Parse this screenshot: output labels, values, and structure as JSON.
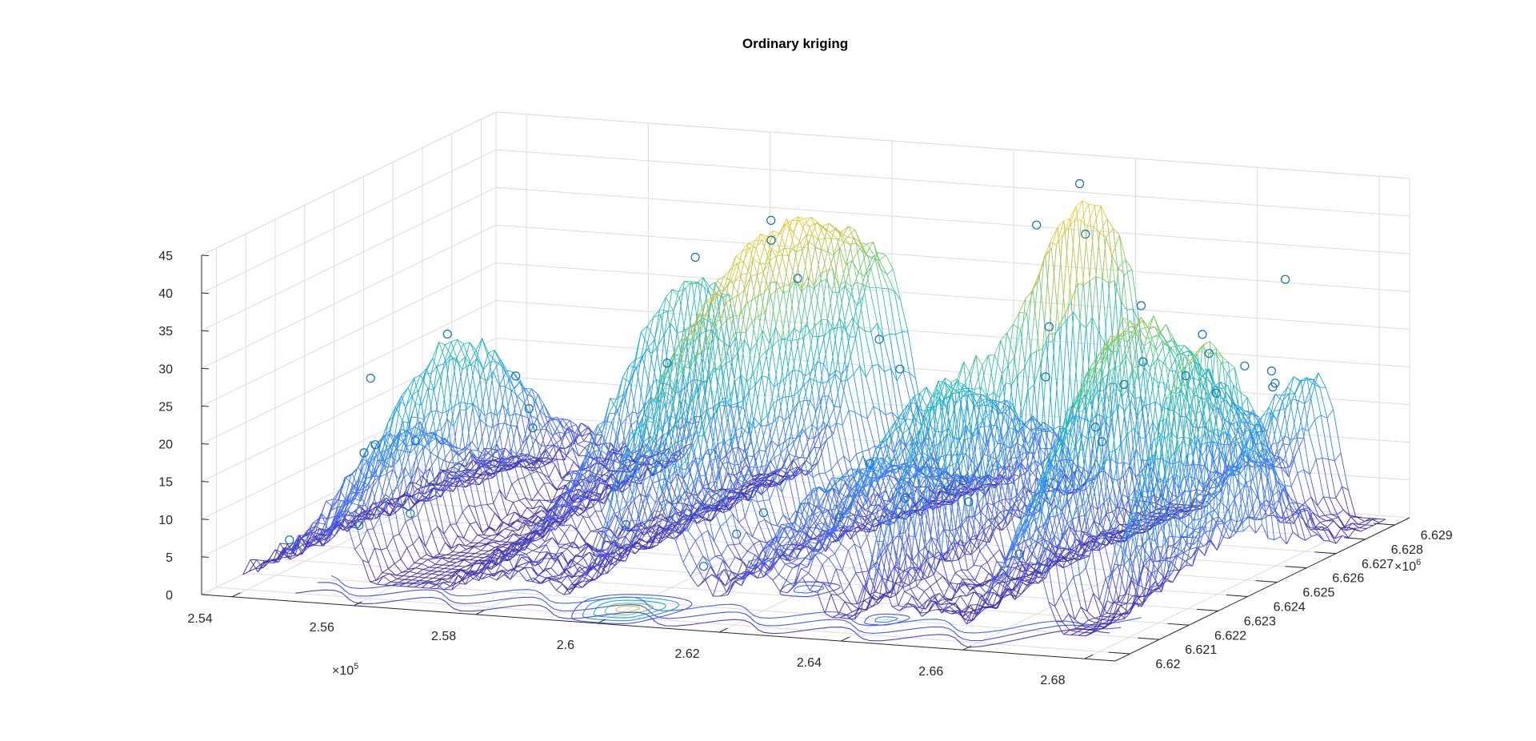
{
  "chart_data": {
    "type": "surface",
    "title": "Ordinary kriging",
    "x_axis": {
      "ticks": [
        "2.54",
        "2.56",
        "2.58",
        "2.6",
        "2.62",
        "2.64",
        "2.66",
        "2.68"
      ],
      "tick_values": [
        2.54,
        2.56,
        2.58,
        2.6,
        2.62,
        2.64,
        2.66,
        2.68
      ],
      "exponent_base": "×10",
      "exponent": "5",
      "range": [
        2.535,
        2.685
      ]
    },
    "y_axis": {
      "ticks": [
        "6.62",
        "6.621",
        "6.622",
        "6.623",
        "6.624",
        "6.625",
        "6.626",
        "6.627",
        "6.628",
        "6.629"
      ],
      "tick_values": [
        6.62,
        6.621,
        6.622,
        6.623,
        6.624,
        6.625,
        6.626,
        6.627,
        6.628,
        6.629
      ],
      "exponent_base": "×10",
      "exponent": "6",
      "range": [
        6.6195,
        6.6295
      ]
    },
    "z_axis": {
      "ticks": [
        "0",
        "5",
        "10",
        "15",
        "20",
        "25",
        "30",
        "35",
        "40",
        "45"
      ],
      "tick_values": [
        0,
        5,
        10,
        15,
        20,
        25,
        30,
        35,
        40,
        45
      ],
      "range": [
        0,
        45
      ]
    },
    "grid": true,
    "colormap": [
      "#3e26a8",
      "#4760f6",
      "#2e8ff6",
      "#12b2cf",
      "#4bc98f",
      "#b7c44a",
      "#f5d03a"
    ],
    "surface_peaks": [
      {
        "x": 2.6,
        "y": 6.6255,
        "z": 40,
        "spread": 0.0075
      },
      {
        "x": 2.6405,
        "y": 6.6275,
        "z": 43,
        "spread": 0.0035
      },
      {
        "x": 2.6795,
        "y": 6.6235,
        "z": 34,
        "spread": 0.003
      },
      {
        "x": 2.5515,
        "y": 6.6245,
        "z": 24,
        "spread": 0.004
      },
      {
        "x": 2.574,
        "y": 6.628,
        "z": 28,
        "spread": 0.004
      },
      {
        "x": 2.6275,
        "y": 6.6252,
        "z": 21,
        "spread": 0.0045
      },
      {
        "x": 2.639,
        "y": 6.623,
        "z": 24,
        "spread": 0.0025
      },
      {
        "x": 2.6605,
        "y": 6.625,
        "z": 28,
        "spread": 0.005
      },
      {
        "x": 2.665,
        "y": 6.6235,
        "z": 22,
        "spread": 0.004
      },
      {
        "x": 2.545,
        "y": 6.624,
        "z": 12,
        "spread": 0.003
      },
      {
        "x": 2.62,
        "y": 6.624,
        "z": 12,
        "spread": 0.004
      },
      {
        "x": 2.672,
        "y": 6.6285,
        "z": 18,
        "spread": 0.004
      }
    ],
    "observations": [
      [
        2.6405,
        6.6275,
        45.5
      ],
      [
        2.64,
        6.6278,
        38.2
      ],
      [
        2.599,
        6.6256,
        41.8
      ],
      [
        2.6,
        6.6254,
        39.6
      ],
      [
        2.6795,
        6.6236,
        35.2
      ],
      [
        2.631,
        6.628,
        38.5
      ],
      [
        2.5512,
        6.6245,
        26.0
      ],
      [
        2.541,
        6.624,
        20.5
      ],
      [
        2.574,
        6.6282,
        30.5
      ],
      [
        2.586,
        6.6292,
        26.5
      ],
      [
        2.653,
        6.627,
        31.0
      ],
      [
        2.667,
        6.629,
        31.5
      ],
      [
        2.662,
        6.6252,
        27.5
      ],
      [
        2.625,
        6.6246,
        25.5
      ],
      [
        2.67,
        6.625,
        26.5
      ],
      [
        2.669,
        6.626,
        27.5
      ],
      [
        2.675,
        6.625,
        24.5
      ],
      [
        2.558,
        6.622,
        17.0
      ],
      [
        2.552,
        6.6215,
        16.0
      ],
      [
        2.549,
        6.6225,
        15.0
      ],
      [
        2.56,
        6.625,
        20.0
      ],
      [
        2.567,
        6.624,
        18.0
      ],
      [
        2.571,
        6.6233,
        17.0
      ],
      [
        2.58,
        6.626,
        21.0
      ],
      [
        2.61,
        6.627,
        24.0
      ],
      [
        2.635,
        6.6276,
        26.0
      ],
      [
        2.647,
        6.625,
        25.0
      ],
      [
        2.656,
        6.6258,
        23.0
      ],
      [
        2.66,
        6.624,
        21.0
      ],
      [
        2.663,
        6.6236,
        20.0
      ],
      [
        2.648,
        6.622,
        17.0
      ],
      [
        2.62,
        6.621,
        13.0
      ],
      [
        2.618,
        6.6205,
        11.0
      ],
      [
        2.63,
        6.6215,
        12.0
      ],
      [
        2.636,
        6.6225,
        13.0
      ],
      [
        2.641,
        6.623,
        13.5
      ],
      [
        2.645,
        6.6228,
        12.5
      ],
      [
        2.623,
        6.624,
        14.0
      ],
      [
        2.615,
        6.62,
        7.5
      ],
      [
        2.595,
        6.6215,
        9.0
      ],
      [
        2.547,
        6.62,
        7.0
      ],
      [
        2.556,
        6.6205,
        8.5
      ],
      [
        2.562,
        6.621,
        9.5
      ],
      [
        2.67,
        6.627,
        24.0
      ],
      [
        2.675,
        6.627,
        22.0
      ],
      [
        2.678,
        6.6263,
        23.0
      ],
      [
        2.672,
        6.6275,
        22.5
      ],
      [
        2.662,
        6.621,
        10.0
      ]
    ]
  }
}
